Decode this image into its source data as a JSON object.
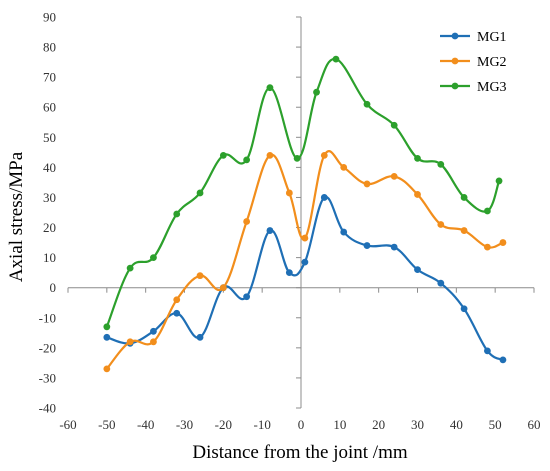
{
  "chart_data": {
    "type": "line",
    "xlabel": "Distance from the joint /mm",
    "ylabel": "Axial stress/MPa",
    "xlim": [
      -60,
      60
    ],
    "ylim": [
      -40,
      90
    ],
    "x_ticks": [
      -60,
      -50,
      -40,
      -30,
      -20,
      -10,
      0,
      10,
      20,
      30,
      40,
      50,
      60
    ],
    "y_ticks": [
      -40,
      -30,
      -20,
      -10,
      0,
      10,
      20,
      30,
      40,
      50,
      60,
      70,
      80,
      90
    ],
    "grid": false,
    "axes_cross_at_zero": true,
    "legend_position": "top-right",
    "smooth": true,
    "series": [
      {
        "name": "MG1",
        "color": "#1f6fb5",
        "points": [
          [
            -50,
            -16.5
          ],
          [
            -44,
            -18.5
          ],
          [
            -38,
            -14.5
          ],
          [
            -32,
            -8.5
          ],
          [
            -26,
            -16.5
          ],
          [
            -20,
            0
          ],
          [
            -14,
            -3
          ],
          [
            -8,
            19
          ],
          [
            -3,
            5
          ],
          [
            1,
            8.5
          ],
          [
            6,
            30
          ],
          [
            11,
            18.5
          ],
          [
            17,
            14
          ],
          [
            24,
            13.5
          ],
          [
            30,
            6
          ],
          [
            36,
            1.5
          ],
          [
            42,
            -7
          ],
          [
            48,
            -21
          ],
          [
            52,
            -24
          ]
        ]
      },
      {
        "name": "MG2",
        "color": "#f28e1c",
        "points": [
          [
            -50,
            -27
          ],
          [
            -44,
            -18
          ],
          [
            -38,
            -18
          ],
          [
            -32,
            -4
          ],
          [
            -26,
            4
          ],
          [
            -20,
            0
          ],
          [
            -14,
            22
          ],
          [
            -8,
            44
          ],
          [
            -3,
            31.5
          ],
          [
            1,
            16.5
          ],
          [
            6,
            44
          ],
          [
            11,
            40
          ],
          [
            17,
            34.5
          ],
          [
            24,
            37
          ],
          [
            30,
            31
          ],
          [
            36,
            21
          ],
          [
            42,
            19
          ],
          [
            48,
            13.5
          ],
          [
            52,
            15
          ]
        ]
      },
      {
        "name": "MG3",
        "color": "#2ca02c",
        "points": [
          [
            -50,
            -13
          ],
          [
            -44,
            6.5
          ],
          [
            -38,
            10
          ],
          [
            -32,
            24.5
          ],
          [
            -26,
            31.5
          ],
          [
            -20,
            44
          ],
          [
            -14,
            42.5
          ],
          [
            -8,
            66.5
          ],
          [
            -1,
            43
          ],
          [
            4,
            65
          ],
          [
            9,
            76
          ],
          [
            17,
            61
          ],
          [
            24,
            54
          ],
          [
            30,
            43
          ],
          [
            36,
            41
          ],
          [
            42,
            30
          ],
          [
            48,
            25.5
          ],
          [
            51,
            35.5
          ]
        ]
      }
    ]
  }
}
